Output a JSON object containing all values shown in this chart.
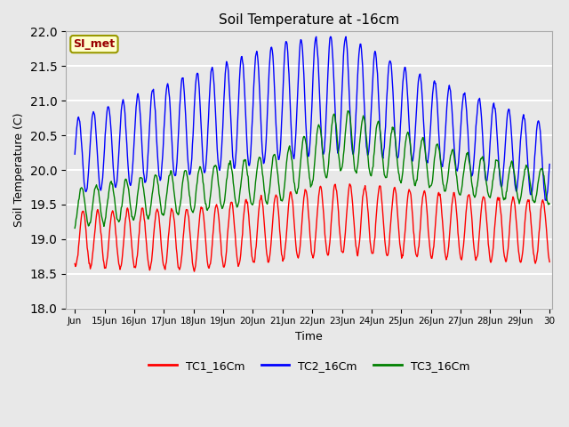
{
  "title": "Soil Temperature at -16cm",
  "xlabel": "Time",
  "ylabel": "Soil Temperature (C)",
  "ylim": [
    18.0,
    22.0
  ],
  "yticks": [
    18.0,
    18.5,
    19.0,
    19.5,
    20.0,
    20.5,
    21.0,
    21.5,
    22.0
  ],
  "bg_color": "#e8e8e8",
  "plot_bg_color": "#e8e8e8",
  "grid_color": "white",
  "legend_labels": [
    "TC1_16Cm",
    "TC2_16Cm",
    "TC3_16Cm"
  ],
  "line_colors": [
    "red",
    "blue",
    "green"
  ],
  "watermark_text": "SI_met",
  "watermark_fg": "#990000",
  "watermark_bg": "#ffffcc",
  "watermark_border": "#999900",
  "x_start": 14,
  "x_end": 30,
  "xtick_positions": [
    14,
    15,
    16,
    17,
    18,
    19,
    20,
    21,
    22,
    23,
    24,
    25,
    26,
    27,
    28,
    29,
    30
  ],
  "xtick_labels": [
    "Jun",
    "15Jun",
    "16Jun",
    "17Jun",
    "18Jun",
    "19Jun",
    "20Jun",
    "21Jun",
    "22Jun",
    "23Jun",
    "24Jun",
    "25Jun",
    "26Jun",
    "27Jun",
    "28Jun",
    "29Jun",
    "30"
  ],
  "figsize": [
    6.4,
    4.8
  ],
  "dpi": 100
}
